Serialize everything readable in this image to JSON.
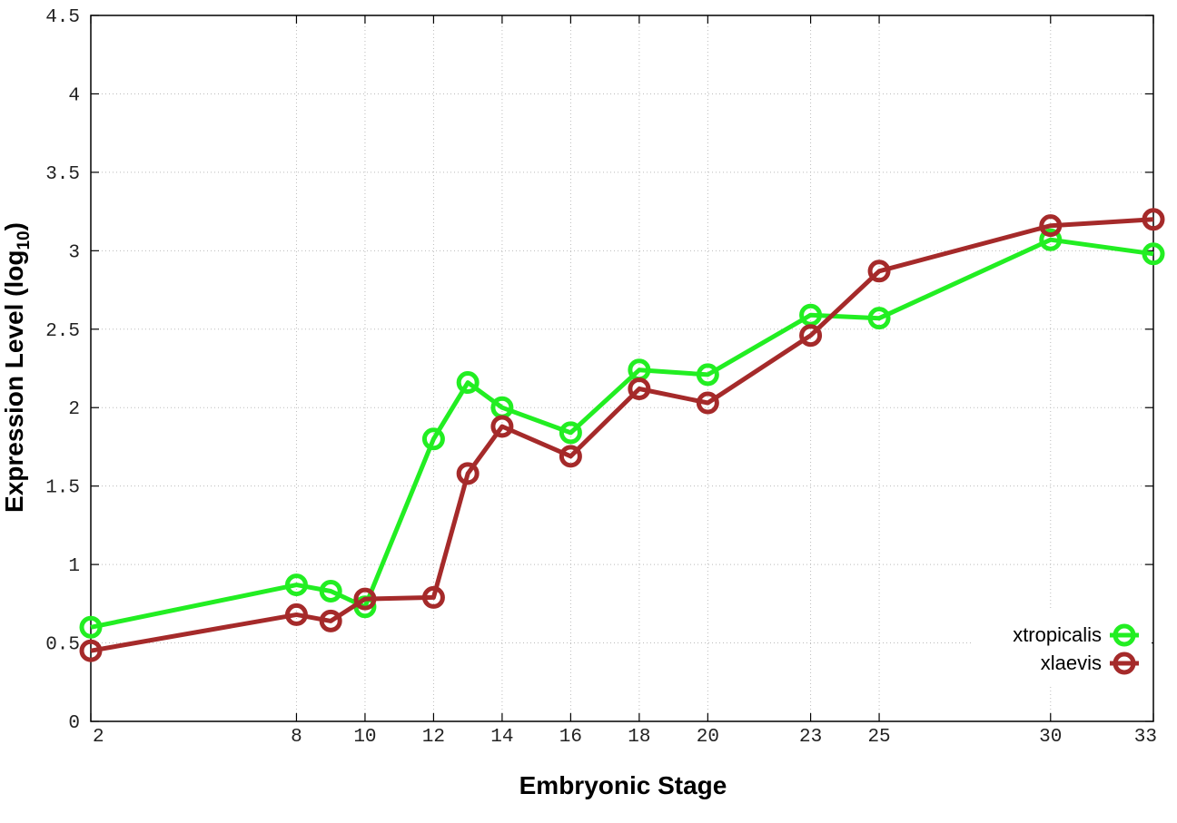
{
  "chart_data": {
    "type": "line",
    "xlabel": "Embryonic Stage",
    "ylabel": "Expression Level (log",
    "ylabel_sub": "10",
    "ylabel_close": ")",
    "x": [
      2,
      8,
      9,
      10,
      12,
      13,
      14,
      16,
      18,
      20,
      23,
      25,
      30,
      33
    ],
    "x_ticks": [
      2,
      8,
      10,
      12,
      14,
      16,
      18,
      20,
      23,
      25,
      30,
      33
    ],
    "x_tick_labels": [
      "2",
      "8",
      "10",
      "12",
      "14",
      "16",
      "18",
      "20",
      "23",
      "25",
      "30",
      "33"
    ],
    "xlim": [
      2,
      33
    ],
    "y_ticks": [
      0,
      0.5,
      1,
      1.5,
      2,
      2.5,
      3,
      3.5,
      4,
      4.5
    ],
    "y_tick_labels": [
      "0",
      "0.5",
      "1",
      "1.5",
      "2",
      "2.5",
      "3",
      "3.5",
      "4",
      "4.5"
    ],
    "ylim": [
      0,
      4.5
    ],
    "grid": true,
    "legend_position": "bottom-right",
    "series": [
      {
        "name": "xtropicalis",
        "color": "#22ee22",
        "values": [
          0.6,
          0.87,
          0.83,
          0.73,
          1.8,
          2.16,
          2.0,
          1.84,
          2.24,
          2.21,
          2.59,
          2.57,
          3.07,
          2.98
        ]
      },
      {
        "name": "xlaevis",
        "color": "#a52a2a",
        "values": [
          0.45,
          0.68,
          0.64,
          0.78,
          0.79,
          1.58,
          1.88,
          1.69,
          2.12,
          2.03,
          2.46,
          2.87,
          3.16,
          3.2
        ]
      }
    ]
  }
}
